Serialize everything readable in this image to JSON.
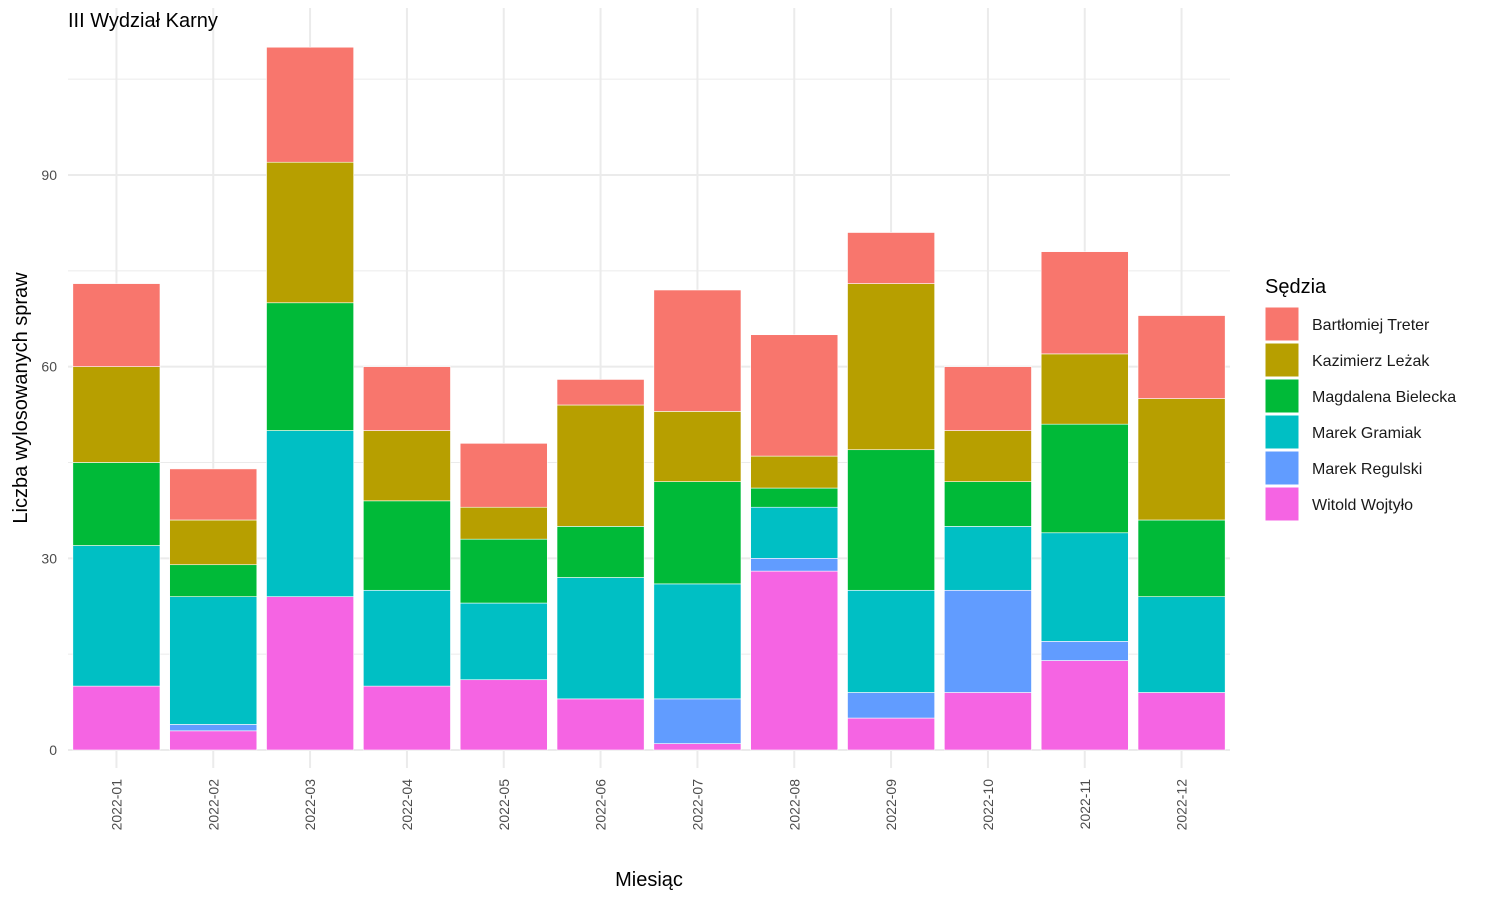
{
  "chart_data": {
    "type": "bar",
    "stacked": true,
    "title": "III Wydział Karny",
    "xlabel": "Miesiąc",
    "ylabel": "Liczba wylosowanych spraw",
    "ylim": [
      0,
      113
    ],
    "yticks": [
      0,
      30,
      60,
      90
    ],
    "grid": true,
    "legend_position": "right",
    "legend_title": "Sędzia",
    "categories": [
      "2022-01",
      "2022-02",
      "2022-03",
      "2022-04",
      "2022-05",
      "2022-06",
      "2022-07",
      "2022-08",
      "2022-09",
      "2022-10",
      "2022-11",
      "2022-12"
    ],
    "series": [
      {
        "name": "Witold Wojtyło",
        "color": "#F564E3",
        "values": [
          10,
          3,
          24,
          10,
          11,
          8,
          1,
          28,
          5,
          9,
          14,
          9
        ]
      },
      {
        "name": "Marek Regulski",
        "color": "#619CFF",
        "values": [
          0,
          1,
          0,
          0,
          0,
          0,
          7,
          2,
          4,
          16,
          3,
          0
        ]
      },
      {
        "name": "Marek Gramiak",
        "color": "#00BFC4",
        "values": [
          22,
          20,
          26,
          15,
          12,
          19,
          18,
          8,
          16,
          10,
          17,
          15
        ]
      },
      {
        "name": "Magdalena Bielecka",
        "color": "#00BA38",
        "values": [
          13,
          5,
          20,
          14,
          10,
          8,
          16,
          3,
          22,
          7,
          17,
          12
        ]
      },
      {
        "name": "Kazimierz Leżak",
        "color": "#B79F00",
        "values": [
          15,
          7,
          22,
          11,
          5,
          19,
          11,
          5,
          26,
          8,
          11,
          19
        ]
      },
      {
        "name": "Bartłomiej Treter",
        "color": "#F8766D",
        "values": [
          13,
          8,
          18,
          10,
          10,
          4,
          19,
          19,
          8,
          10,
          16,
          13
        ]
      }
    ],
    "legend_order": [
      "Bartłomiej Treter",
      "Kazimierz Leżak",
      "Magdalena Bielecka",
      "Marek Gramiak",
      "Marek Regulski",
      "Witold Wojtyło"
    ]
  }
}
